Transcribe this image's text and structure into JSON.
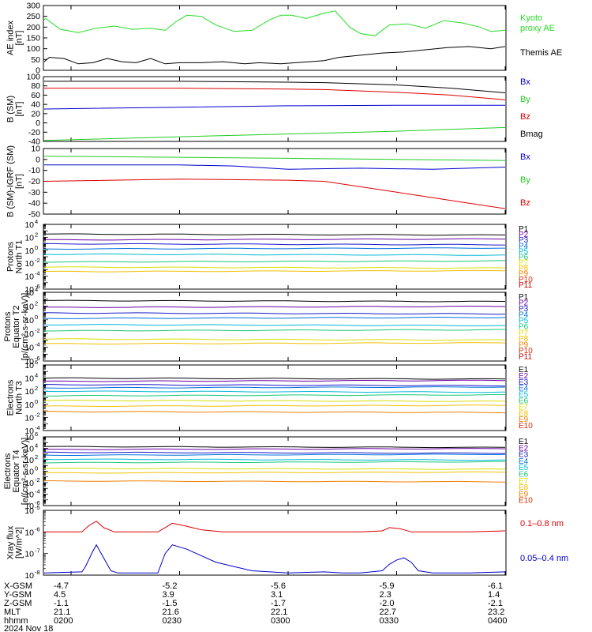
{
  "colors": {
    "ae_kyoto": "#22dd22",
    "ae_themis": "#000000",
    "bx": "#0000cc",
    "by": "#22cc22",
    "bz": "#dd0000",
    "bmag": "#000000",
    "xray_long": "#dd0000",
    "xray_short": "#0000cc",
    "channels": [
      "#000000",
      "#6a00a8",
      "#1a1acc",
      "#0070e0",
      "#00b8d8",
      "#18c878",
      "#d8e000",
      "#f0c000",
      "#f08000",
      "#e02800",
      "#c00000"
    ]
  },
  "time_axis": {
    "start": "0200",
    "end": "0400",
    "ticks": [
      "0200",
      "0230",
      "0300",
      "0330",
      "0400"
    ]
  },
  "chart_data": [
    {
      "id": "ae",
      "type": "line",
      "ylabel": [
        "AE index",
        "[nT]"
      ],
      "ylim": [
        0,
        300
      ],
      "yticks": [
        0,
        50,
        100,
        150,
        200,
        250,
        300
      ],
      "log": false,
      "series": [
        {
          "name": "Kyoto proxy AE",
          "color_key": "ae_kyoto",
          "x": [
            "0150",
            "0153",
            "0157",
            "0202",
            "0207",
            "0212",
            "0217",
            "0222",
            "0226",
            "0229",
            "0232",
            "0236",
            "0240",
            "0245",
            "0250",
            "0255",
            "0258",
            "0301",
            "0305",
            "0310",
            "0313",
            "0317",
            "0320",
            "0324",
            "0328",
            "0333",
            "0338",
            "0343",
            "0348",
            "0353",
            "0356",
            "0400"
          ],
          "y": [
            235,
            240,
            190,
            175,
            195,
            205,
            190,
            195,
            185,
            225,
            255,
            250,
            210,
            180,
            185,
            235,
            255,
            255,
            240,
            265,
            275,
            200,
            170,
            160,
            210,
            215,
            195,
            230,
            220,
            200,
            180,
            185
          ]
        },
        {
          "name": "Themis AE",
          "color_key": "ae_themis",
          "x": [
            "0150",
            "0154",
            "0158",
            "0202",
            "0206",
            "0210",
            "0214",
            "0218",
            "0222",
            "0226",
            "0230",
            "0236",
            "0242",
            "0248",
            "0252",
            "0258",
            "0302",
            "0306",
            "0310",
            "0314",
            "0320",
            "0326",
            "0332",
            "0338",
            "0344",
            "0350",
            "0356",
            "0400"
          ],
          "y": [
            40,
            60,
            55,
            30,
            35,
            55,
            40,
            35,
            55,
            30,
            35,
            35,
            40,
            30,
            35,
            30,
            35,
            40,
            45,
            60,
            70,
            80,
            85,
            95,
            105,
            110,
            100,
            110
          ]
        }
      ]
    },
    {
      "id": "bsm",
      "type": "line",
      "ylabel": [
        "B (SM)",
        "[nT]"
      ],
      "ylim": [
        -40,
        100
      ],
      "yticks": [
        -40,
        -20,
        0,
        20,
        40,
        60,
        80,
        100
      ],
      "log": false,
      "series": [
        {
          "name": "Bx",
          "color_key": "bx",
          "x": [
            "0150",
            "0230",
            "0300",
            "0330",
            "0400"
          ],
          "y": [
            30,
            34,
            37,
            38,
            38
          ]
        },
        {
          "name": "By",
          "color_key": "by",
          "x": [
            "0150",
            "0230",
            "0300",
            "0330",
            "0400"
          ],
          "y": [
            -38,
            -30,
            -24,
            -18,
            -10
          ]
        },
        {
          "name": "Bz",
          "color_key": "bz",
          "x": [
            "0150",
            "0230",
            "0300",
            "0310",
            "0330",
            "0345",
            "0400"
          ],
          "y": [
            75,
            75,
            73,
            72,
            66,
            60,
            50
          ]
        },
        {
          "name": "Bmag",
          "color_key": "bmag",
          "x": [
            "0150",
            "0230",
            "0300",
            "0310",
            "0330",
            "0345",
            "0400"
          ],
          "y": [
            90,
            90,
            88,
            87,
            82,
            75,
            65
          ]
        }
      ]
    },
    {
      "id": "bigrf",
      "type": "line",
      "ylabel": [
        "B (SM)-IGRF (SM)",
        "[nT]"
      ],
      "ylim": [
        -50,
        10
      ],
      "yticks": [
        -50,
        -40,
        -30,
        -20,
        -10,
        0,
        10
      ],
      "log": false,
      "series": [
        {
          "name": "Bx",
          "color_key": "bx",
          "x": [
            "0150",
            "0230",
            "0245",
            "0300",
            "0320",
            "0340",
            "0400"
          ],
          "y": [
            -5,
            -5,
            -6,
            -9,
            -8,
            -9,
            -7
          ]
        },
        {
          "name": "By",
          "color_key": "by",
          "x": [
            "0150",
            "0230",
            "0300",
            "0330",
            "0400"
          ],
          "y": [
            3,
            2,
            1,
            0,
            -1
          ]
        },
        {
          "name": "Bz",
          "color_key": "bz",
          "x": [
            "0150",
            "0230",
            "0300",
            "0310",
            "0320",
            "0330",
            "0340",
            "0350",
            "0400"
          ],
          "y": [
            -20,
            -18,
            -19,
            -20,
            -25,
            -30,
            -35,
            -40,
            -45
          ]
        }
      ]
    },
    {
      "id": "p_north",
      "type": "line",
      "ylabel": [
        "Protons",
        "North T1"
      ],
      "log": true,
      "ylim_exp": [
        -6,
        4
      ],
      "ytick_exps": [
        -6,
        -4,
        -2,
        0,
        2,
        4
      ],
      "legend": [
        "P1",
        "P2",
        "P3",
        "P4",
        "P5",
        "P6",
        "P7",
        "P8",
        "P9",
        "P10",
        "P11"
      ],
      "levels_exp": [
        2.5,
        1.6,
        1.0,
        0.2,
        -0.6,
        -1.8,
        -2.6,
        -3.3
      ]
    },
    {
      "id": "p_eq",
      "type": "line",
      "ylabel": [
        "Protons",
        "Equator T2",
        "[p/(cm²-s-sr-keV)]"
      ],
      "log": true,
      "ylim_exp": [
        -6,
        4
      ],
      "ytick_exps": [
        -6,
        -4,
        -2,
        0,
        2,
        4
      ],
      "legend": [
        "P1",
        "P2",
        "P3",
        "P4",
        "P5",
        "P6",
        "P7",
        "P8",
        "P9",
        "P10",
        "P11"
      ],
      "levels_exp": [
        2.8,
        1.8,
        1.0,
        0.2,
        -0.7,
        -1.6,
        -2.8,
        -3.5
      ]
    },
    {
      "id": "e_north",
      "type": "line",
      "ylabel": [
        "Electrons",
        "North T3"
      ],
      "log": true,
      "ylim_exp": [
        -4,
        6
      ],
      "ytick_exps": [
        -4,
        -2,
        0,
        2,
        4,
        6
      ],
      "legend": [
        "E1",
        "E2",
        "E3",
        "E4",
        "E5",
        "E6",
        "E7",
        "E8",
        "E9",
        "E10"
      ],
      "levels_exp": [
        4.0,
        3.5,
        3.0,
        2.5,
        2.0,
        1.3,
        0.6,
        -0.3,
        -1.1
      ]
    },
    {
      "id": "e_eq",
      "type": "line",
      "ylabel": [
        "Electrons",
        "Equator T4",
        "[e/(cm²-s-sr-keV)]"
      ],
      "log": true,
      "ylim_exp": [
        -6,
        6
      ],
      "ytick_exps": [
        -6,
        -4,
        -2,
        0,
        2,
        4,
        6
      ],
      "legend": [
        "E1",
        "E2",
        "E3",
        "E4",
        "E5",
        "E6",
        "E7",
        "E8",
        "E9",
        "E10"
      ],
      "levels_exp": [
        4.3,
        3.8,
        3.3,
        2.8,
        2.1,
        1.5,
        0.5,
        -0.3,
        -1.7
      ]
    },
    {
      "id": "xray",
      "type": "line",
      "ylabel": [
        "Xray flux",
        "[W/m^2]"
      ],
      "log": true,
      "ylim_exp": [
        -8,
        -5
      ],
      "ytick_exps": [
        -8,
        -7,
        -6,
        -5
      ],
      "series": [
        {
          "name": "0.1-0.8 nm",
          "color_key": "xray_long",
          "x": [
            "0150",
            "0203",
            "0205",
            "0207",
            "0209",
            "0212",
            "0218",
            "0224",
            "0226",
            "0228",
            "0231",
            "0236",
            "0242",
            "0250",
            "0300",
            "0320",
            "0326",
            "0328",
            "0331",
            "0334",
            "0340",
            "0350",
            "0400"
          ],
          "y_exp": [
            -6.0,
            -6.0,
            -5.7,
            -5.5,
            -5.8,
            -6.0,
            -6.0,
            -6.0,
            -5.8,
            -5.6,
            -5.7,
            -5.9,
            -6.0,
            -6.0,
            -6.0,
            -6.0,
            -5.95,
            -5.8,
            -5.85,
            -6.0,
            -6.0,
            -6.0,
            -5.95
          ]
        },
        {
          "name": "0.05-0.4 nm",
          "color_key": "xray_short",
          "x": [
            "0150",
            "0203",
            "0204",
            "0206",
            "0207",
            "0209",
            "0211",
            "0213",
            "0224",
            "0226",
            "0228",
            "0232",
            "0236",
            "0240",
            "0245",
            "0250",
            "0255",
            "0300",
            "0310",
            "0315",
            "0320",
            "0326",
            "0328",
            "0330",
            "0332",
            "0334",
            "0336",
            "0340",
            "0350",
            "0400"
          ],
          "y_exp": [
            -7.9,
            -7.85,
            -7.6,
            -6.9,
            -6.6,
            -7.2,
            -7.8,
            -7.9,
            -7.9,
            -7.0,
            -6.6,
            -6.8,
            -7.1,
            -7.4,
            -7.6,
            -7.8,
            -7.85,
            -7.9,
            -7.85,
            -7.9,
            -7.9,
            -7.8,
            -7.5,
            -7.3,
            -7.2,
            -7.4,
            -7.8,
            -7.9,
            -7.9,
            -7.85
          ]
        }
      ]
    }
  ],
  "legends": {
    "ae": [
      "Kyoto",
      "proxy AE",
      "Themis AE"
    ],
    "bsm": [
      "Bx",
      "By",
      "Bz",
      "Bmag"
    ],
    "bigrf": [
      "Bx",
      "By",
      "Bz"
    ],
    "xray": [
      "0.1–0.8 nm",
      "0.05–0.4 nm"
    ]
  },
  "ytick_labels": {
    "ae": [
      "0",
      "50",
      "100",
      "150",
      "200",
      "250",
      "300"
    ],
    "bsm": [
      "-40",
      "-20",
      "0",
      "20",
      "40",
      "60",
      "80",
      "100"
    ],
    "bigrf": [
      "-50",
      "-40",
      "-30",
      "-20",
      "-10",
      "0",
      "10"
    ]
  },
  "orbit": {
    "labels": [
      "X-GSM",
      "Y-GSM",
      "Z-GSM",
      "MLT",
      "hhmm"
    ],
    "rows": [
      [
        "-4.7",
        "-5.2",
        "-5.6",
        "-5.9",
        "-6.1"
      ],
      [
        "4.5",
        "3.9",
        "3.1",
        "2.3",
        "1.4"
      ],
      [
        "-1.1",
        "-1.5",
        "-1.7",
        "-2.0",
        "-2.1"
      ],
      [
        "21.1",
        "21.6",
        "22.1",
        "22.7",
        "23.2"
      ],
      [
        "0200",
        "0230",
        "0300",
        "0330",
        "0400"
      ]
    ],
    "date": "2024 Nov 18"
  }
}
